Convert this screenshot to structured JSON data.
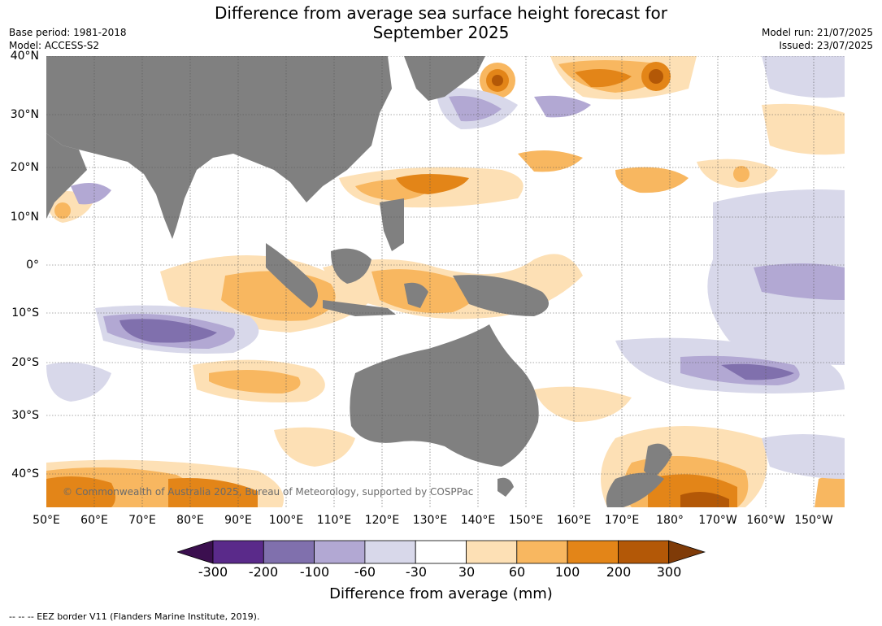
{
  "title_line1": "Difference from average sea surface height forecast for",
  "title_line2": "September 2025",
  "meta_left": [
    "Base period: 1981-2018",
    "Model: ACCESS-S2"
  ],
  "meta_right": [
    "Model run: 21/07/2025",
    "Issued: 23/07/2025"
  ],
  "latitude_labels": [
    "40°N",
    "30°N",
    "20°N",
    "10°N",
    "0°",
    "10°S",
    "20°S",
    "30°S",
    "40°S"
  ],
  "longitude_labels": [
    "50°E",
    "60°E",
    "70°E",
    "80°E",
    "90°E",
    "100°E",
    "110°E",
    "120°E",
    "130°E",
    "140°E",
    "150°E",
    "160°E",
    "170°E",
    "180°",
    "170°W",
    "160°W",
    "150°W"
  ],
  "copyright": "© Commonwealth of Australia 2025, Bureau of Meteorology, supported by COSPPac",
  "colorbar": {
    "ticks": [
      "-300",
      "-200",
      "-100",
      "-60",
      "-30",
      "30",
      "60",
      "100",
      "200",
      "300"
    ],
    "colors": [
      "#3b0f4f",
      "#5a2a8a",
      "#8070ad",
      "#b2a8d3",
      "#d8d8ea",
      "#ffffff",
      "#fde0b5",
      "#f8b760",
      "#e38518",
      "#b35807",
      "#7f3b08"
    ],
    "label": "Difference from average (mm)"
  },
  "footnote": "--  --  -- EEZ border V11 (Flanders Marine Institute, 2019).",
  "land_color": "#808080"
}
